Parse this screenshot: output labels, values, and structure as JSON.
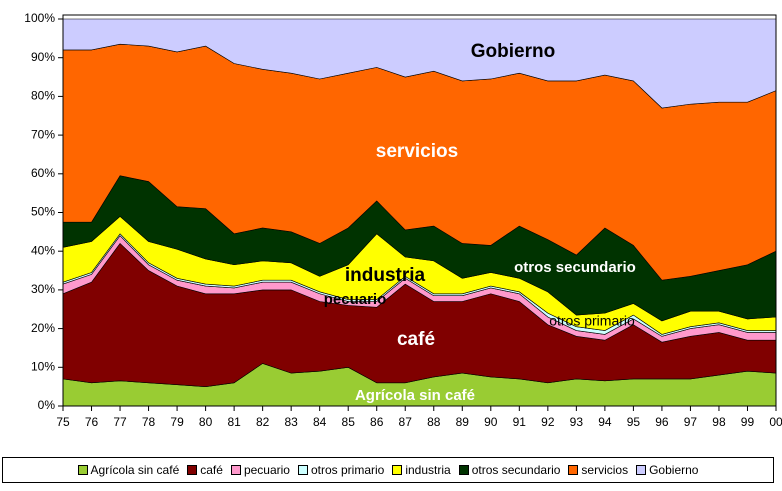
{
  "chart_data": {
    "type": "stacked-area",
    "categories": [
      "75",
      "76",
      "77",
      "78",
      "79",
      "80",
      "81",
      "82",
      "83",
      "84",
      "85",
      "86",
      "87",
      "88",
      "89",
      "90",
      "91",
      "92",
      "93",
      "94",
      "95",
      "96",
      "97",
      "98",
      "99",
      "00"
    ],
    "ylim": [
      0,
      100
    ],
    "yticks": [
      {
        "value": 0,
        "label": "0%"
      },
      {
        "value": 10,
        "label": "10%"
      },
      {
        "value": 20,
        "label": "20%"
      },
      {
        "value": 30,
        "label": "30%"
      },
      {
        "value": 40,
        "label": "40%"
      },
      {
        "value": 50,
        "label": "50%"
      },
      {
        "value": 60,
        "label": "60%"
      },
      {
        "value": 70,
        "label": "70%"
      },
      {
        "value": 80,
        "label": "80%"
      },
      {
        "value": 90,
        "label": "90%"
      },
      {
        "value": 100,
        "label": "100%"
      }
    ],
    "legend": "bottom",
    "series": [
      {
        "name": "Agrícola sin café",
        "color": "#99cc33",
        "values": [
          7,
          6,
          6.5,
          6,
          5.5,
          5,
          6,
          11,
          8.5,
          9,
          10,
          6,
          6,
          7.5,
          8.5,
          7.5,
          7,
          6,
          7,
          6.5,
          7,
          7,
          7,
          8,
          9,
          8.5
        ]
      },
      {
        "name": "café",
        "color": "#800000",
        "values": [
          22,
          26,
          35.5,
          29,
          25.5,
          24,
          23,
          19,
          21.5,
          18,
          16,
          19.5,
          25.5,
          19.5,
          18.5,
          21.5,
          20,
          15,
          11,
          10.5,
          14,
          9.5,
          11,
          11,
          8,
          8.5
        ]
      },
      {
        "name": "pecuario",
        "color": "#ff99cc",
        "values": [
          2.5,
          2,
          2,
          1.5,
          1.5,
          2,
          1.5,
          2,
          2,
          2,
          1,
          1.5,
          1.5,
          1.5,
          1.5,
          1.5,
          2,
          2,
          1.5,
          1.5,
          1.5,
          1.5,
          2,
          2,
          2,
          2
        ]
      },
      {
        "name": "otros primario",
        "color": "#ccffff",
        "values": [
          0.5,
          0.5,
          0.5,
          0.5,
          0.5,
          0.5,
          0.5,
          0.5,
          0.5,
          0.5,
          0.5,
          0.5,
          0.5,
          0.5,
          0.5,
          0.5,
          0.5,
          1,
          1,
          1,
          1,
          0.5,
          0.5,
          0.5,
          0.5,
          0.5
        ]
      },
      {
        "name": "industria",
        "color": "#ffff00",
        "values": [
          9,
          8,
          4.5,
          5.5,
          7.5,
          6.5,
          5.5,
          5,
          4.5,
          4,
          9,
          17,
          5,
          8.5,
          4,
          3.5,
          3.5,
          5.5,
          3,
          4.5,
          3,
          3.5,
          4,
          3,
          3,
          3.5
        ]
      },
      {
        "name": "otros secundario",
        "color": "#003300",
        "values": [
          6.5,
          5,
          10.5,
          15.5,
          11,
          13,
          8,
          8.5,
          8,
          8.5,
          9.5,
          8.5,
          7,
          9,
          9,
          7,
          13.5,
          13.5,
          15.5,
          22,
          15,
          10.5,
          9,
          10.5,
          14,
          17
        ]
      },
      {
        "name": "servicios",
        "color": "#ff6600",
        "values": [
          44.5,
          44.5,
          34,
          35,
          40,
          42,
          44,
          41,
          41,
          42.5,
          40,
          34.5,
          39.5,
          40,
          42,
          43,
          39.5,
          41,
          45,
          39.5,
          42.5,
          44.5,
          44.5,
          43.5,
          42,
          41.5
        ]
      },
      {
        "name": "Gobierno",
        "color": "#ccccff",
        "values": [
          8,
          8,
          6.5,
          7,
          8.5,
          7,
          11.5,
          13,
          14,
          15.5,
          14,
          12.5,
          15,
          13.5,
          16,
          15.5,
          14,
          16,
          16,
          14.5,
          16,
          23,
          22,
          21.5,
          21.5,
          18.5
        ]
      }
    ]
  }
}
